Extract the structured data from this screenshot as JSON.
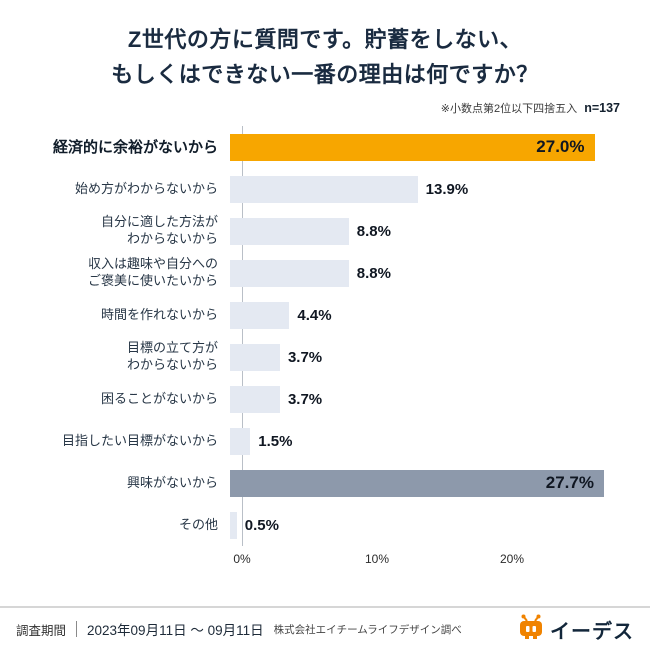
{
  "title": {
    "line1": "Z世代の方に質問です。貯蓄をしない、",
    "line2": "もしくはできない一番の理由は何ですか？"
  },
  "note": {
    "rounding": "※小数点第2位以下四捨五入",
    "sample": "n=137"
  },
  "chart_data": {
    "type": "bar",
    "orientation": "horizontal",
    "title": "Z世代の方に質問です。貯蓄をしない、もしくはできない一番の理由は何ですか？",
    "note": "※小数点第2位以下四捨五入 n=137",
    "sample_size": 137,
    "xlim": [
      0,
      28
    ],
    "x_ticks": [
      "0%",
      "10%",
      "20%"
    ],
    "tick_values": [
      0,
      10,
      20
    ],
    "grid": false,
    "legend": "none",
    "colors": {
      "highlight": "#F7A600",
      "default": "#E4E9F2",
      "emphasis": "#8D99AB"
    },
    "rows": [
      {
        "label_lines": [
          "経済的に余裕がないから"
        ],
        "value": 27.0,
        "display": "27.0%",
        "style": "highlight",
        "bold_label": true,
        "value_inside": true
      },
      {
        "label_lines": [
          "始め方がわからないから"
        ],
        "value": 13.9,
        "display": "13.9%",
        "style": "default",
        "bold_label": false,
        "value_inside": false
      },
      {
        "label_lines": [
          "自分に適した方法が",
          "わからないから"
        ],
        "value": 8.8,
        "display": "8.8%",
        "style": "default",
        "bold_label": false,
        "value_inside": false
      },
      {
        "label_lines": [
          "収入は趣味や自分への",
          "ご褒美に使いたいから"
        ],
        "value": 8.8,
        "display": "8.8%",
        "style": "default",
        "bold_label": false,
        "value_inside": false
      },
      {
        "label_lines": [
          "時間を作れないから"
        ],
        "value": 4.4,
        "display": "4.4%",
        "style": "default",
        "bold_label": false,
        "value_inside": false
      },
      {
        "label_lines": [
          "目標の立て方が",
          "わからないから"
        ],
        "value": 3.7,
        "display": "3.7%",
        "style": "default",
        "bold_label": false,
        "value_inside": false
      },
      {
        "label_lines": [
          "困ることがないから"
        ],
        "value": 3.7,
        "display": "3.7%",
        "style": "default",
        "bold_label": false,
        "value_inside": false
      },
      {
        "label_lines": [
          "目指したい目標がないから"
        ],
        "value": 1.5,
        "display": "1.5%",
        "style": "default",
        "bold_label": false,
        "value_inside": false
      },
      {
        "label_lines": [
          "興味がないから"
        ],
        "value": 27.7,
        "display": "27.7%",
        "style": "emphasis",
        "bold_label": false,
        "value_inside": true
      },
      {
        "label_lines": [
          "その他"
        ],
        "value": 0.5,
        "display": "0.5%",
        "style": "default",
        "bold_label": false,
        "value_inside": false
      }
    ]
  },
  "footer": {
    "period_label": "調査期間",
    "period_value": "2023年09月11日 〜 09月11日",
    "source": "株式会社エイチームライフデザイン調べ",
    "brand": "イーデス",
    "brand_color": "#F08300"
  }
}
